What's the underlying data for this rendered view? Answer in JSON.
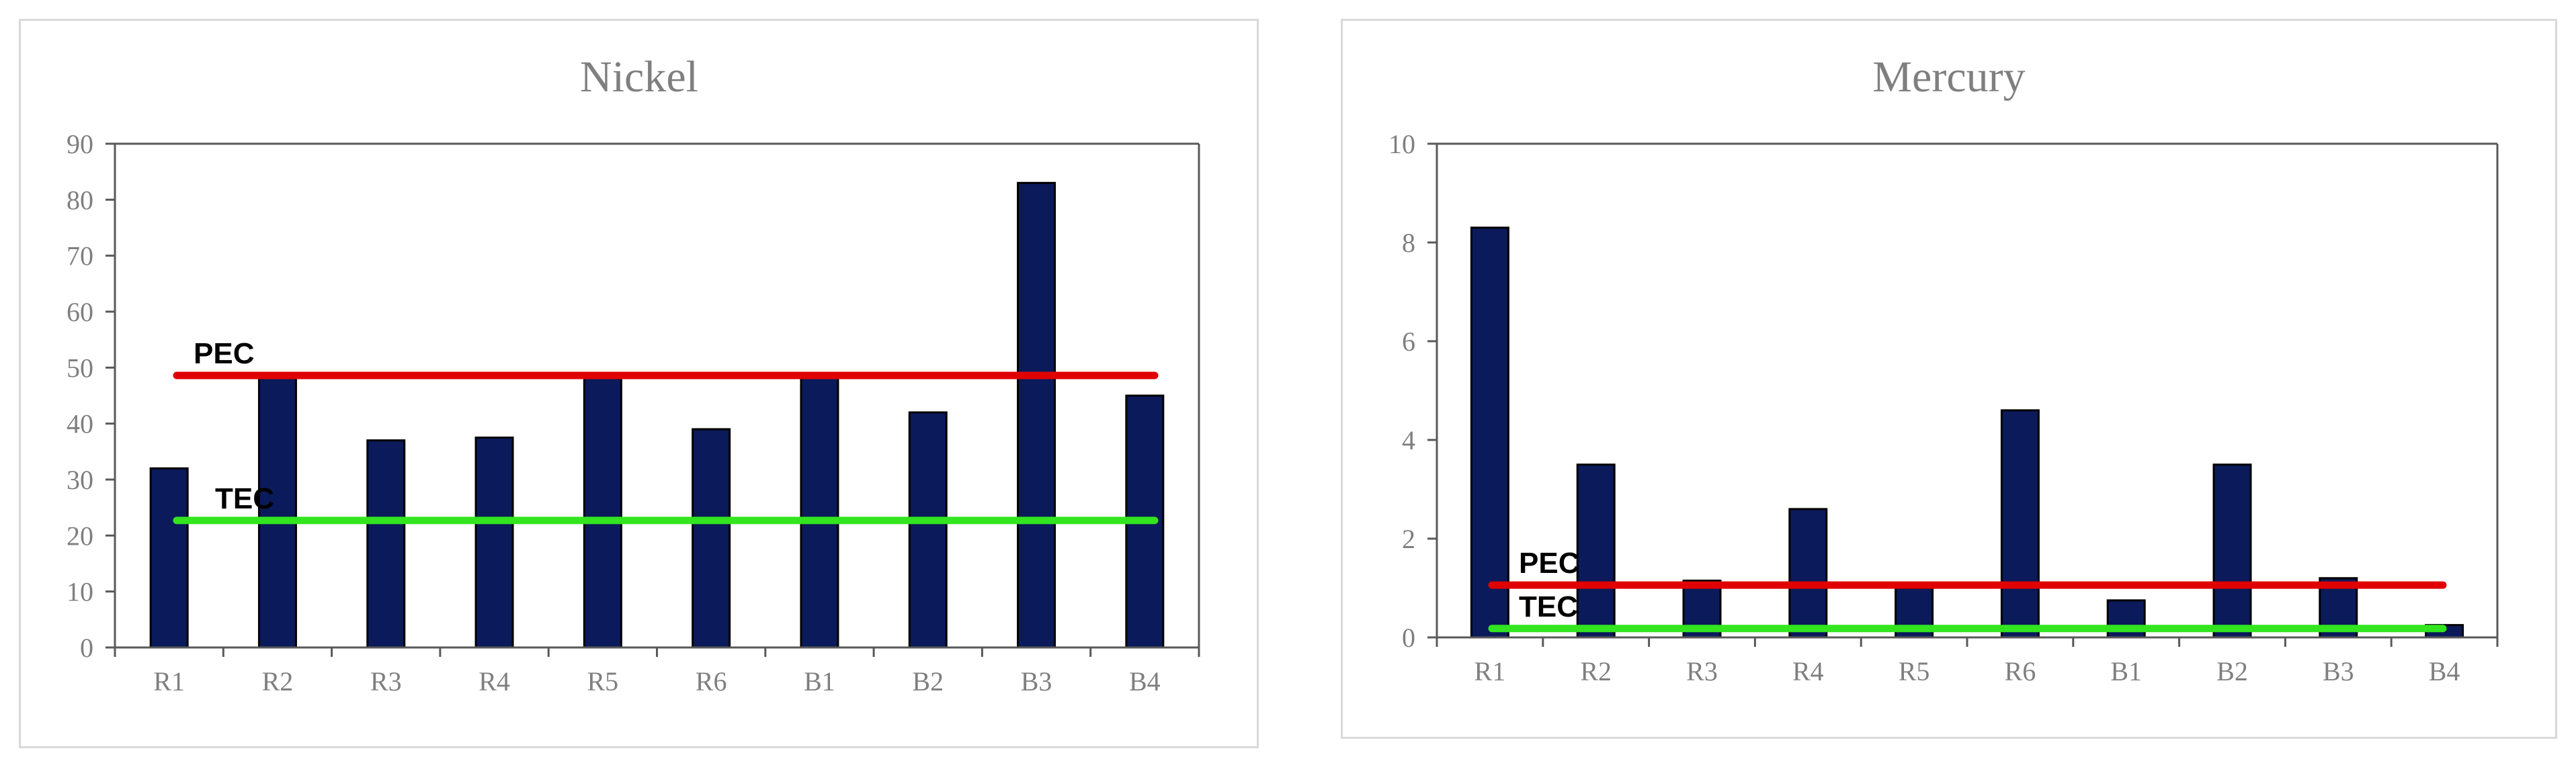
{
  "colors": {
    "bar_fill": "#0b1a5a",
    "bar_stroke": "#000000",
    "pec_line": "#e00000",
    "tec_line": "#33e51f",
    "axis": "#595959",
    "text": "#7f7f7f",
    "border": "#d9d9d9"
  },
  "chart_data": [
    {
      "type": "bar",
      "title": "Nickel",
      "xlabel": "",
      "ylabel": "",
      "categories": [
        "R1",
        "R2",
        "R3",
        "R4",
        "R5",
        "R6",
        "B1",
        "B2",
        "B3",
        "B4"
      ],
      "values": [
        32,
        49,
        37,
        37.5,
        49,
        39,
        49,
        42,
        83,
        45
      ],
      "ylim": [
        0,
        90
      ],
      "yticks": [
        0,
        10,
        20,
        30,
        40,
        50,
        60,
        70,
        80,
        90
      ],
      "grid": false,
      "reference_lines": [
        {
          "label": "PEC",
          "value": 48.6
        },
        {
          "label": "TEC",
          "value": 22.7
        }
      ]
    },
    {
      "type": "bar",
      "title": "Mercury",
      "xlabel": "",
      "ylabel": "",
      "categories": [
        "R1",
        "R2",
        "R3",
        "R4",
        "R5",
        "R6",
        "B1",
        "B2",
        "B3",
        "B4"
      ],
      "values": [
        8.3,
        3.5,
        1.15,
        2.6,
        1.0,
        4.6,
        0.75,
        3.5,
        1.2,
        0.25
      ],
      "ylim": [
        0,
        10
      ],
      "yticks": [
        0,
        2,
        4,
        6,
        8,
        10
      ],
      "grid": false,
      "reference_lines": [
        {
          "label": "PEC",
          "value": 1.06
        },
        {
          "label": "TEC",
          "value": 0.18
        }
      ]
    }
  ]
}
